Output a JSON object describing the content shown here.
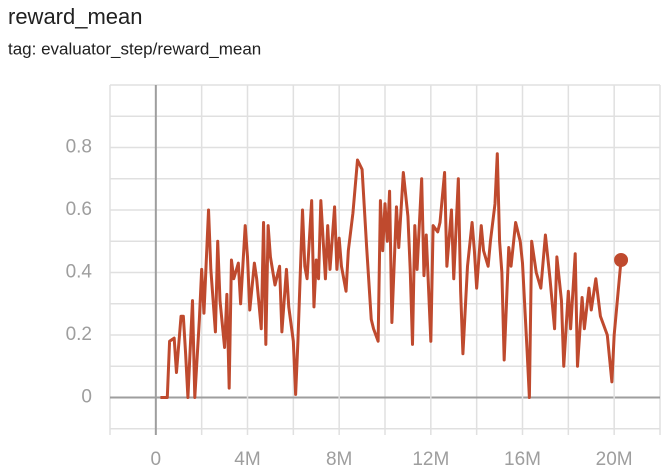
{
  "chart_data": {
    "type": "line",
    "title": "reward_mean",
    "subtitle": "tag: evaluator_step/reward_mean",
    "x": [
      200000,
      500000,
      600000,
      800000,
      900000,
      1100000,
      1200000,
      1300000,
      1400000,
      1600000,
      1700000,
      1900000,
      2000000,
      2100000,
      2300000,
      2400000,
      2600000,
      2700000,
      2800000,
      3000000,
      3100000,
      3200000,
      3300000,
      3400000,
      3600000,
      3700000,
      3900000,
      4000000,
      4100000,
      4300000,
      4400000,
      4600000,
      4700000,
      4800000,
      4900000,
      5000000,
      5200000,
      5400000,
      5500000,
      5700000,
      5800000,
      6000000,
      6100000,
      6200000,
      6400000,
      6500000,
      6600000,
      6800000,
      6900000,
      7000000,
      7100000,
      7200000,
      7400000,
      7500000,
      7600000,
      7800000,
      7900000,
      8000000,
      8100000,
      8300000,
      8400000,
      8600000,
      8800000,
      9000000,
      9200000,
      9400000,
      9500000,
      9700000,
      9800000,
      9900000,
      10000000,
      10100000,
      10200000,
      10300000,
      10500000,
      10600000,
      10800000,
      11000000,
      11100000,
      11200000,
      11300000,
      11400000,
      11600000,
      11700000,
      11800000,
      12000000,
      12100000,
      12300000,
      12400000,
      12600000,
      12700000,
      12900000,
      13000000,
      13200000,
      13300000,
      13400000,
      13600000,
      13800000,
      13900000,
      14000000,
      14200000,
      14300000,
      14500000,
      14600000,
      14800000,
      14900000,
      15000000,
      15100000,
      15200000,
      15400000,
      15500000,
      15700000,
      15900000,
      16000000,
      16200000,
      16300000,
      16400000,
      16600000,
      16800000,
      17000000,
      17200000,
      17400000,
      17500000,
      17700000,
      17800000,
      18000000,
      18100000,
      18300000,
      18400000,
      18600000,
      18700000,
      18900000,
      19000000,
      19200000,
      19400000,
      19500000,
      19700000,
      19900000,
      20000000,
      20300000
    ],
    "series": [
      {
        "color": "#bf4a2e",
        "values": [
          0,
          0,
          0.18,
          0.19,
          0.08,
          0.26,
          0.26,
          0.14,
          0,
          0.31,
          0,
          0.25,
          0.41,
          0.27,
          0.6,
          0.41,
          0.21,
          0.5,
          0.31,
          0.16,
          0.33,
          0.03,
          0.44,
          0.38,
          0.43,
          0.3,
          0.55,
          0.45,
          0.28,
          0.43,
          0.38,
          0.22,
          0.56,
          0.17,
          0.55,
          0.45,
          0.36,
          0.42,
          0.21,
          0.41,
          0.29,
          0.18,
          0.01,
          0.18,
          0.6,
          0.42,
          0.38,
          0.63,
          0.29,
          0.44,
          0.38,
          0.63,
          0.38,
          0.55,
          0.41,
          0.61,
          0.41,
          0.51,
          0.42,
          0.34,
          0.47,
          0.59,
          0.76,
          0.73,
          0.48,
          0.25,
          0.22,
          0.18,
          0.63,
          0.47,
          0.62,
          0.5,
          0.66,
          0.24,
          0.61,
          0.48,
          0.72,
          0.58,
          0.41,
          0.17,
          0.55,
          0.41,
          0.7,
          0.39,
          0.52,
          0.18,
          0.55,
          0.53,
          0.56,
          0.72,
          0.42,
          0.6,
          0.38,
          0.7,
          0.34,
          0.14,
          0.42,
          0.56,
          0.47,
          0.35,
          0.55,
          0.47,
          0.42,
          0.5,
          0.62,
          0.78,
          0.5,
          0.4,
          0.12,
          0.48,
          0.42,
          0.56,
          0.5,
          0.43,
          0.15,
          0,
          0.5,
          0.4,
          0.35,
          0.52,
          0.38,
          0.22,
          0.45,
          0.31,
          0.1,
          0.34,
          0.22,
          0.46,
          0.1,
          0.32,
          0.22,
          0.35,
          0.28,
          0.38,
          0.26,
          0.24,
          0.2,
          0.05,
          0.2,
          0.44
        ]
      }
    ],
    "xlim": [
      -2000000,
      22000000
    ],
    "xticks": [
      0,
      {
        "value": 4000000,
        "label": "4M"
      },
      {
        "value": 8000000,
        "label": "8M"
      },
      {
        "value": 12000000,
        "label": "12M"
      },
      {
        "value": 16000000,
        "label": "16M"
      },
      {
        "value": 20000000,
        "label": "20M"
      }
    ],
    "x_minor_ticks": [
      -2000000,
      2000000,
      6000000,
      10000000,
      14000000,
      18000000,
      22000000
    ],
    "ylim": [
      -0.12,
      1.0
    ],
    "yticks": [
      0,
      0.2,
      0.4,
      0.6,
      0.8
    ],
    "y_minor_ticks": [
      -0.1,
      0.1,
      0.3,
      0.5,
      0.7,
      0.9,
      1.0
    ],
    "grid": true,
    "end_marker": true
  }
}
